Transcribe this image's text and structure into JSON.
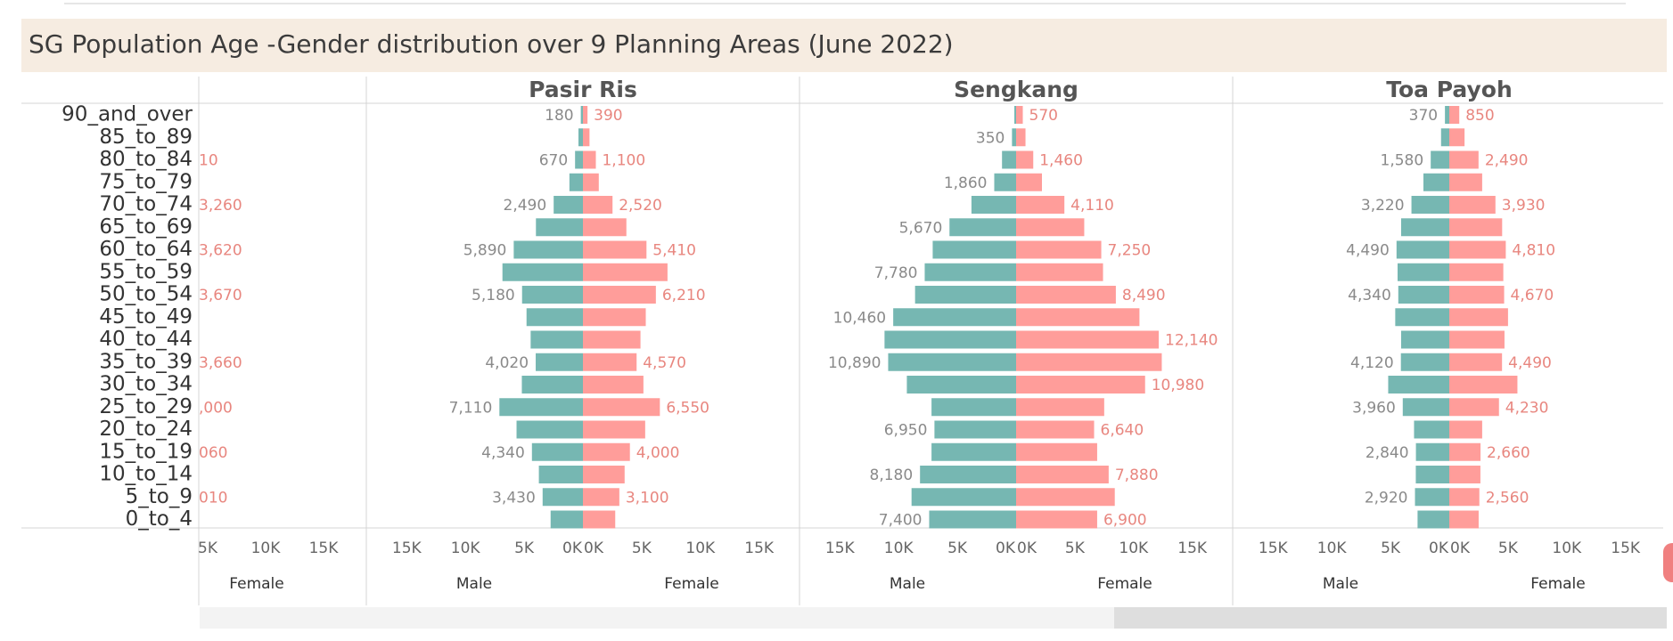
{
  "page": {
    "title": "SG Population Age -Gender distribution over 9 Planning Areas (June 2022)"
  },
  "colors": {
    "male": "#76b7b2",
    "female": "#ff9d9a",
    "female_label": "#e8867f",
    "male_label": "#8a8a8a"
  },
  "chart_data": {
    "type": "bar",
    "orientation": "horizontal",
    "subtype": "population-pyramid",
    "title": "SG Population Age -Gender distribution over 9 Planning Areas (June 2022)",
    "categories": [
      "90_and_over",
      "85_to_89",
      "80_to_84",
      "75_to_79",
      "70_to_74",
      "65_to_69",
      "60_to_64",
      "55_to_59",
      "50_to_54",
      "45_to_49",
      "40_to_44",
      "35_to_39",
      "30_to_34",
      "25_to_29",
      "20_to_24",
      "15_to_19",
      "10_to_14",
      "5_to_9",
      "0_to_4"
    ],
    "xlim": [
      0,
      17000
    ],
    "tick_values": [
      0,
      5000,
      10000,
      15000
    ],
    "tick_labels": [
      "0K",
      "5K",
      "10K",
      "15K"
    ],
    "grid": false,
    "legend": "none",
    "partial_panel": {
      "female_labels": [
        "",
        "",
        "10",
        "",
        "3,260",
        "",
        "3,620",
        "",
        "3,670",
        "",
        "",
        "3,660",
        "",
        ",000",
        "",
        "060",
        "",
        "010",
        ""
      ],
      "axis_tick_labels": [
        "5K",
        "10K",
        "15K"
      ],
      "axis_title": "Female"
    },
    "panels": [
      {
        "name": "Pasir Ris",
        "male_label": "Male",
        "female_label": "Female",
        "male": [
          180,
          380,
          670,
          1150,
          2490,
          4000,
          5890,
          6850,
          5180,
          4800,
          4450,
          4020,
          5200,
          7110,
          5650,
          4340,
          3750,
          3430,
          2750
        ],
        "female": [
          390,
          560,
          1100,
          1350,
          2520,
          3700,
          5410,
          7200,
          6210,
          5350,
          4900,
          4570,
          5150,
          6550,
          5300,
          4000,
          3550,
          3100,
          2750
        ],
        "male_labels": [
          "180",
          "",
          "670",
          "",
          "2,490",
          "",
          "5,890",
          "",
          "5,180",
          "",
          "",
          "4,020",
          "",
          "7,110",
          "",
          "4,340",
          "",
          "3,430",
          ""
        ],
        "female_labels": [
          "390",
          "",
          "1,100",
          "",
          "2,520",
          "",
          "5,410",
          "",
          "6,210",
          "",
          "",
          "4,570",
          "",
          "6,550",
          "",
          "4,000",
          "",
          "3,100",
          ""
        ]
      },
      {
        "name": "Sengkang",
        "male_label": "Male",
        "female_label": "Female",
        "male": [
          150,
          350,
          1200,
          1860,
          3800,
          5670,
          7100,
          7780,
          8600,
          10460,
          11200,
          10890,
          9300,
          7200,
          6950,
          7200,
          8180,
          8900,
          7400
        ],
        "female": [
          570,
          800,
          1460,
          2200,
          4110,
          5800,
          7250,
          7400,
          8490,
          10500,
          12140,
          12400,
          10980,
          7500,
          6640,
          6900,
          7880,
          8400,
          6900
        ],
        "male_labels": [
          "",
          "350",
          "",
          "1,860",
          "",
          "5,670",
          "",
          "7,780",
          "",
          "10,460",
          "",
          "10,890",
          "",
          "",
          "6,950",
          "",
          "8,180",
          "",
          "7,400"
        ],
        "female_labels": [
          "570",
          "",
          "1,460",
          "",
          "4,110",
          "",
          "7,250",
          "",
          "8,490",
          "",
          "12,140",
          "",
          "10,980",
          "",
          "6,640",
          "",
          "7,880",
          "",
          "6,900"
        ]
      },
      {
        "name": "Toa Payoh",
        "male_label": "Male",
        "female_label": "Female",
        "male": [
          370,
          700,
          1580,
          2200,
          3220,
          4100,
          4490,
          4400,
          4340,
          4600,
          4100,
          4120,
          5200,
          3960,
          3000,
          2840,
          2850,
          2920,
          2700
        ],
        "female": [
          850,
          1300,
          2490,
          2800,
          3930,
          4500,
          4810,
          4600,
          4670,
          5000,
          4700,
          4490,
          5800,
          4230,
          2800,
          2660,
          2650,
          2560,
          2500
        ],
        "male_labels": [
          "370",
          "",
          "1,580",
          "",
          "3,220",
          "",
          "4,490",
          "",
          "4,340",
          "",
          "",
          "4,120",
          "",
          "3,960",
          "",
          "2,840",
          "",
          "2,920",
          ""
        ],
        "female_labels": [
          "850",
          "",
          "2,490",
          "",
          "3,930",
          "",
          "4,810",
          "",
          "4,670",
          "",
          "",
          "4,490",
          "",
          "4,230",
          "",
          "2,660",
          "",
          "2,560",
          ""
        ]
      }
    ]
  }
}
